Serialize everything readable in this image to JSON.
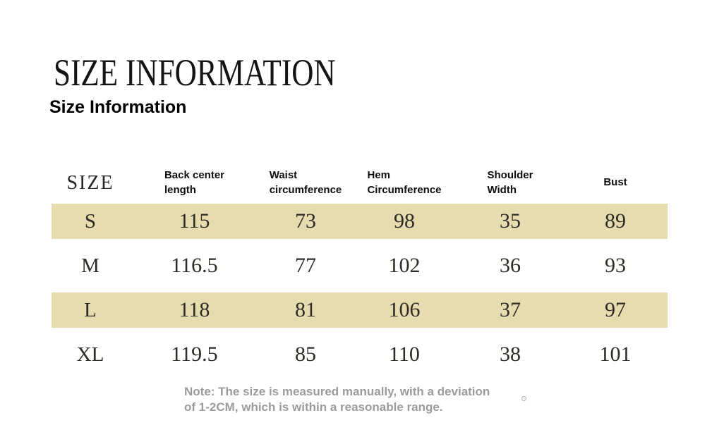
{
  "header": {
    "title": "SIZE INFORMATION",
    "subtitle": "Size Information"
  },
  "chart_data": {
    "type": "table",
    "columns": [
      "SIZE",
      "Back center\nlength",
      "Waist\ncircumference",
      "Hem\nCircumference",
      "Shoulder\nWidth",
      "Bust"
    ],
    "rows": [
      {
        "size": "S",
        "values": [
          "115",
          "73",
          "98",
          "35",
          "89"
        ],
        "highlighted": true
      },
      {
        "size": "M",
        "values": [
          "116.5",
          "77",
          "102",
          "36",
          "93"
        ],
        "highlighted": false
      },
      {
        "size": "L",
        "values": [
          "118",
          "81",
          "106",
          "37",
          "97"
        ],
        "highlighted": true
      },
      {
        "size": "XL",
        "values": [
          "119.5",
          "85",
          "110",
          "38",
          "101"
        ],
        "highlighted": false
      }
    ]
  },
  "note": {
    "text": "Note: The size is measured manually, with a deviation\nof 1-2CM, which is within a reasonable range."
  },
  "icons": {
    "note_mark": "small-circle-outline"
  },
  "colors": {
    "row_highlight": "#e6dcb0",
    "note_text": "#9b9b9b",
    "text_dark": "#2e2a25"
  }
}
